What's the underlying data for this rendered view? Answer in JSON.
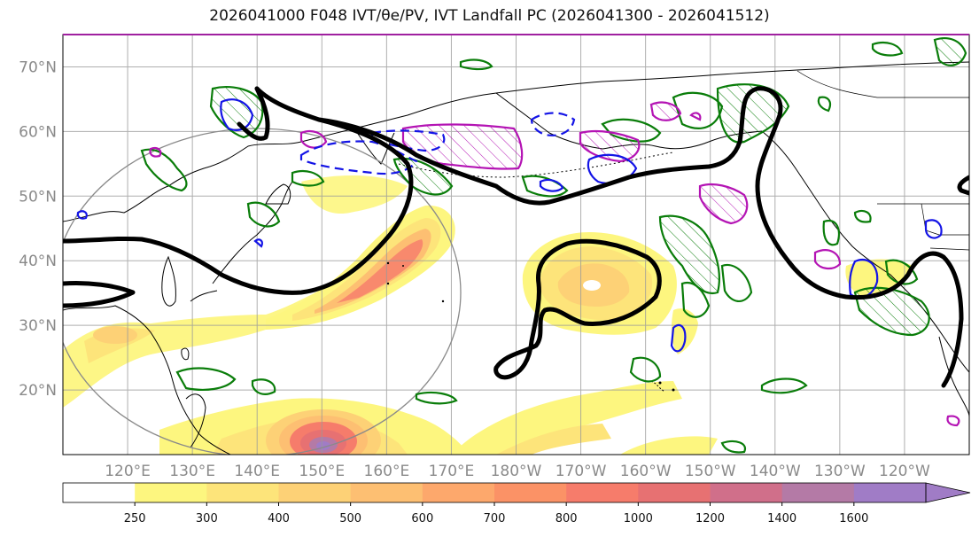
{
  "title": "2026041000 F048 IVT/θe/PV, IVT Landfall PC (2026041300 - 2026041512)",
  "map": {
    "lat_labels": [
      "70°N",
      "60°N",
      "50°N",
      "40°N",
      "30°N",
      "20°N"
    ],
    "lat_values": [
      70,
      60,
      50,
      40,
      30,
      20
    ],
    "lon_labels": [
      "120°E",
      "130°E",
      "140°E",
      "150°E",
      "160°E",
      "170°E",
      "180°W",
      "170°W",
      "160°W",
      "150°W",
      "140°W",
      "130°W",
      "120°W"
    ],
    "lon_values": [
      120,
      130,
      140,
      150,
      160,
      170,
      180,
      190,
      200,
      210,
      220,
      230,
      240
    ],
    "lon_range": [
      110,
      250
    ],
    "lat_range": [
      10,
      75
    ]
  },
  "colorbar": {
    "units_label": "",
    "levels": [
      "250",
      "300",
      "400",
      "500",
      "600",
      "700",
      "800",
      "1000",
      "1200",
      "1400",
      "1600"
    ],
    "colors": [
      "#ffffff",
      "#fdf67f",
      "#fde47a",
      "#fdd176",
      "#fdbf72",
      "#fda86c",
      "#fb9266",
      "#f67c6b",
      "#e77172",
      "#d06f8a",
      "#b47aa6",
      "#a07cc6"
    ]
  },
  "colors": {
    "theta_e_contour": "#000000",
    "pv_contour": "#0a7d0a",
    "pc_positive": "#b414b4",
    "pc_negative": "#1414e6",
    "grid": "#9a9a9a",
    "coast": "#000000",
    "landfall_circle": "#8a8a8a"
  }
}
